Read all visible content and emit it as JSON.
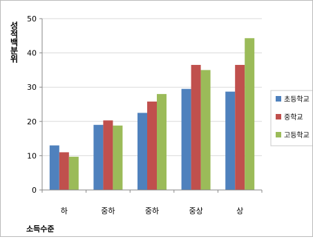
{
  "chart_data": {
    "type": "bar",
    "title": "",
    "ylabel": "성적백분위",
    "xlabel": "소득수준",
    "categories": [
      "하",
      "중하",
      "중하",
      "중상",
      "상"
    ],
    "series": [
      {
        "name": "초등학교",
        "color": "#4f81bd",
        "values": [
          13,
          19,
          22.5,
          29.5,
          28.7
        ]
      },
      {
        "name": "중학교",
        "color": "#c0504d",
        "values": [
          11,
          20.3,
          25.8,
          36.5,
          36.5
        ]
      },
      {
        "name": "고등학교",
        "color": "#9bbb59",
        "values": [
          9.7,
          18.8,
          28,
          35,
          44.3
        ]
      }
    ],
    "ylim": [
      0,
      50
    ],
    "yticks": [
      0,
      10,
      20,
      30,
      40,
      50
    ],
    "grid": true,
    "legend_position": "right"
  }
}
